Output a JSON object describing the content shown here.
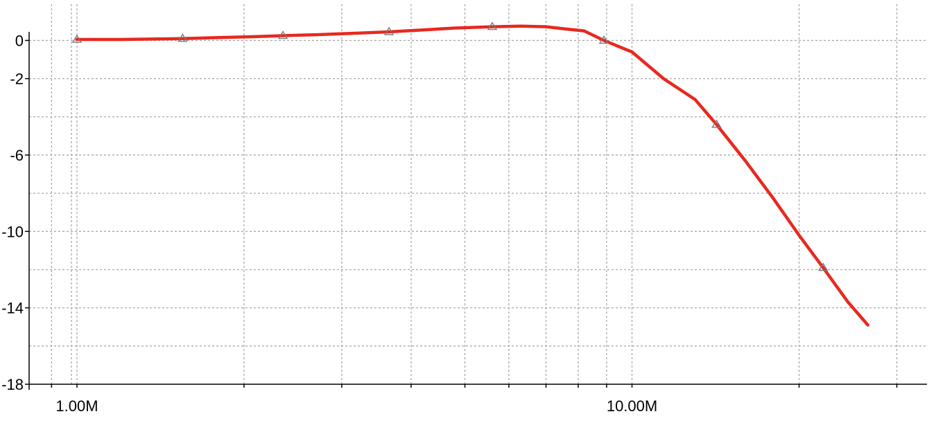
{
  "chart_data": {
    "type": "line",
    "title": "",
    "xlabel": "",
    "ylabel": "",
    "x_scale": "log",
    "x_unit_hz": 1,
    "xlim": [
      820000,
      34000000
    ],
    "ylim": [
      -18,
      1.9
    ],
    "grid": true,
    "legend": "none",
    "x_tick_labels": [
      {
        "value": 1000000,
        "label": "1.00M"
      },
      {
        "value": 10000000,
        "label": "10.00M"
      }
    ],
    "y_tick_labels": [
      {
        "value": 0,
        "label": "0"
      },
      {
        "value": -2,
        "label": "-2"
      },
      {
        "value": -6,
        "label": "-6"
      },
      {
        "value": -10,
        "label": "-10"
      },
      {
        "value": -14,
        "label": "-14"
      },
      {
        "value": -18,
        "label": "-18"
      }
    ],
    "y_gridlines": [
      0,
      -2,
      -4,
      -6,
      -8,
      -10,
      -12,
      -14,
      -16
    ],
    "series": [
      {
        "color": "#e8281e",
        "marker": "triangle",
        "points": [
          [
            1000000,
            0.05
          ],
          [
            1200000,
            0.05
          ],
          [
            1400000,
            0.08
          ],
          [
            1550000,
            0.1
          ],
          [
            1800000,
            0.15
          ],
          [
            2100000,
            0.2
          ],
          [
            2350000,
            0.25
          ],
          [
            2700000,
            0.3
          ],
          [
            3200000,
            0.38
          ],
          [
            3650000,
            0.45
          ],
          [
            4200000,
            0.55
          ],
          [
            4800000,
            0.65
          ],
          [
            5600000,
            0.72
          ],
          [
            6300000,
            0.75
          ],
          [
            7000000,
            0.72
          ],
          [
            7600000,
            0.6
          ],
          [
            8200000,
            0.5
          ],
          [
            8900000,
            0.0
          ],
          [
            10000000,
            -0.6
          ],
          [
            11400000,
            -2.0
          ],
          [
            13000000,
            -3.1
          ],
          [
            14200000,
            -4.4
          ],
          [
            16000000,
            -6.3
          ],
          [
            18000000,
            -8.3
          ],
          [
            20000000,
            -10.2
          ],
          [
            22100000,
            -11.9
          ],
          [
            24500000,
            -13.7
          ],
          [
            26600000,
            -14.9
          ]
        ],
        "marker_points": [
          [
            1000000,
            0.05
          ],
          [
            1550000,
            0.1
          ],
          [
            2350000,
            0.25
          ],
          [
            3650000,
            0.45
          ],
          [
            5600000,
            0.72
          ],
          [
            8900000,
            0.0
          ],
          [
            14200000,
            -4.4
          ],
          [
            22100000,
            -11.9
          ]
        ]
      }
    ]
  }
}
